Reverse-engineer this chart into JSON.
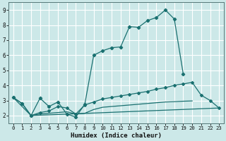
{
  "xlabel": "Humidex (Indice chaleur)",
  "background_color": "#cce8e8",
  "grid_color": "#ffffff",
  "line_color": "#1a7070",
  "ylim": [
    1.5,
    9.5
  ],
  "xlim": [
    -0.5,
    23.5
  ],
  "yticks": [
    2,
    3,
    4,
    5,
    6,
    7,
    8,
    9
  ],
  "xticks": [
    0,
    1,
    2,
    3,
    4,
    5,
    6,
    7,
    8,
    9,
    10,
    11,
    12,
    13,
    14,
    15,
    16,
    17,
    18,
    19,
    20,
    21,
    22,
    23
  ],
  "curve1_x": [
    0,
    1,
    2,
    3,
    4,
    5,
    6,
    7,
    8,
    9,
    10,
    11,
    12,
    13,
    14,
    15,
    16,
    17,
    18,
    19,
    20
  ],
  "curve1_y": [
    3.2,
    2.8,
    2.0,
    3.15,
    2.6,
    2.9,
    2.1,
    1.9,
    2.75,
    6.0,
    6.3,
    6.5,
    6.55,
    7.9,
    7.85,
    8.3,
    8.5,
    9.0,
    8.4,
    4.75,
    null
  ],
  "curve2_x": [
    0,
    1,
    2,
    3,
    4,
    5,
    6,
    7,
    8,
    9,
    10,
    11,
    12,
    13,
    14,
    15,
    16,
    17,
    18,
    19,
    20,
    21,
    22,
    23
  ],
  "curve2_y": [
    3.2,
    2.8,
    2.0,
    2.2,
    2.3,
    2.6,
    2.5,
    2.1,
    2.7,
    2.9,
    3.1,
    3.2,
    3.3,
    3.4,
    3.5,
    3.6,
    3.75,
    3.85,
    4.0,
    4.1,
    4.2,
    3.35,
    3.0,
    2.5
  ],
  "curve3_x": [
    0,
    2,
    23
  ],
  "curve3_y": [
    3.2,
    2.0,
    2.5
  ],
  "curve4_x": [
    0,
    1,
    2,
    3,
    4,
    5,
    6,
    7,
    8,
    9,
    10,
    11,
    12,
    13,
    14,
    15,
    16,
    17,
    18,
    19,
    20,
    21,
    22,
    23
  ],
  "curve4_y": [
    3.2,
    null,
    2.0,
    2.1,
    2.15,
    2.2,
    2.25,
    2.1,
    2.15,
    2.4,
    2.55,
    2.6,
    2.65,
    2.7,
    2.75,
    2.8,
    2.85,
    2.9,
    2.92,
    2.95,
    2.97,
    null,
    null,
    2.5
  ]
}
